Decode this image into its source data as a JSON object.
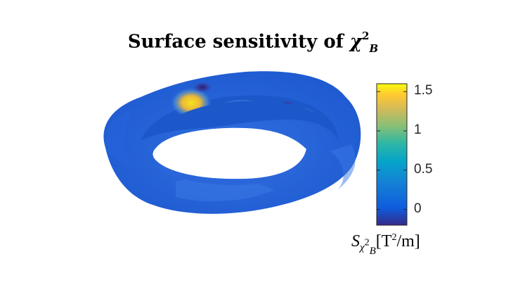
{
  "chart_data": {
    "type": "heatmap",
    "title": {
      "prefix": "Surface sensitivity of ",
      "symbol": "χ",
      "superscript": "2",
      "subscript": "B"
    },
    "plot_type": "3D torus surface colored by sensitivity",
    "colormap": "parula",
    "colorbar": {
      "label_symbol": "S",
      "label_subscript": "χ",
      "label_subscript_sup": "2",
      "label_subscript_sub": "B",
      "label_unit": "[T",
      "label_unit_sup": "2",
      "label_unit_rest": "/m]",
      "ticks": [
        "1.5",
        "1",
        "0.5",
        "0"
      ],
      "tick_values": [
        1.5,
        1,
        0.5,
        0
      ],
      "range": [
        -0.2,
        1.6
      ]
    },
    "surface_regions": [
      {
        "location": "inner wall, back-left",
        "value_range": [
          -0.2,
          1.3
        ]
      },
      {
        "location": "inner wall, back-right",
        "value_range": [
          -0.2,
          1.1
        ]
      },
      {
        "location": "outer surface",
        "value": 0
      }
    ]
  }
}
